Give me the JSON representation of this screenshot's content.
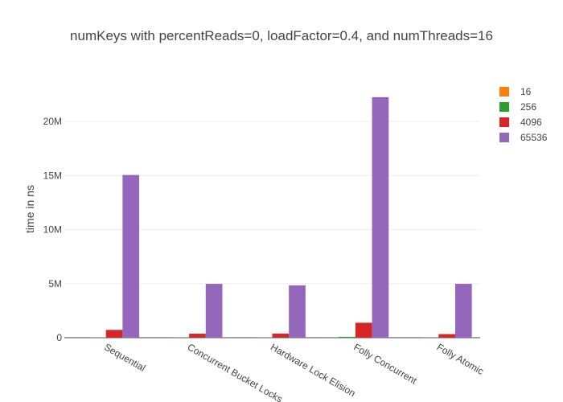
{
  "chart_data": {
    "type": "bar",
    "title": "numKeys with percentReads=0, loadFactor=0.4, and numThreads=16",
    "xlabel": "",
    "ylabel": "time in ns",
    "categories": [
      "Sequential",
      "Concurrent Bucket Locks",
      "Hardware Lock Elision",
      "Folly Concurrent",
      "Folly Atomic"
    ],
    "series": [
      {
        "name": "16",
        "color": "#ff7f0e",
        "values": [
          2000,
          2000,
          2000,
          5000,
          2000
        ]
      },
      {
        "name": "256",
        "color": "#2ca02c",
        "values": [
          30000,
          25000,
          25000,
          80000,
          25000
        ]
      },
      {
        "name": "4096",
        "color": "#d62728",
        "values": [
          720000,
          370000,
          380000,
          1380000,
          330000
        ]
      },
      {
        "name": "65536",
        "color": "#9467bd",
        "values": [
          15050000,
          4980000,
          4840000,
          22250000,
          4980000
        ]
      }
    ],
    "ylim": [
      0,
      23800000
    ],
    "yticks": [
      0,
      5000000,
      10000000,
      15000000,
      20000000
    ],
    "ytick_labels": [
      "0",
      "5M",
      "10M",
      "15M",
      "20M"
    ],
    "grid": true,
    "legend_position": "top-right"
  }
}
